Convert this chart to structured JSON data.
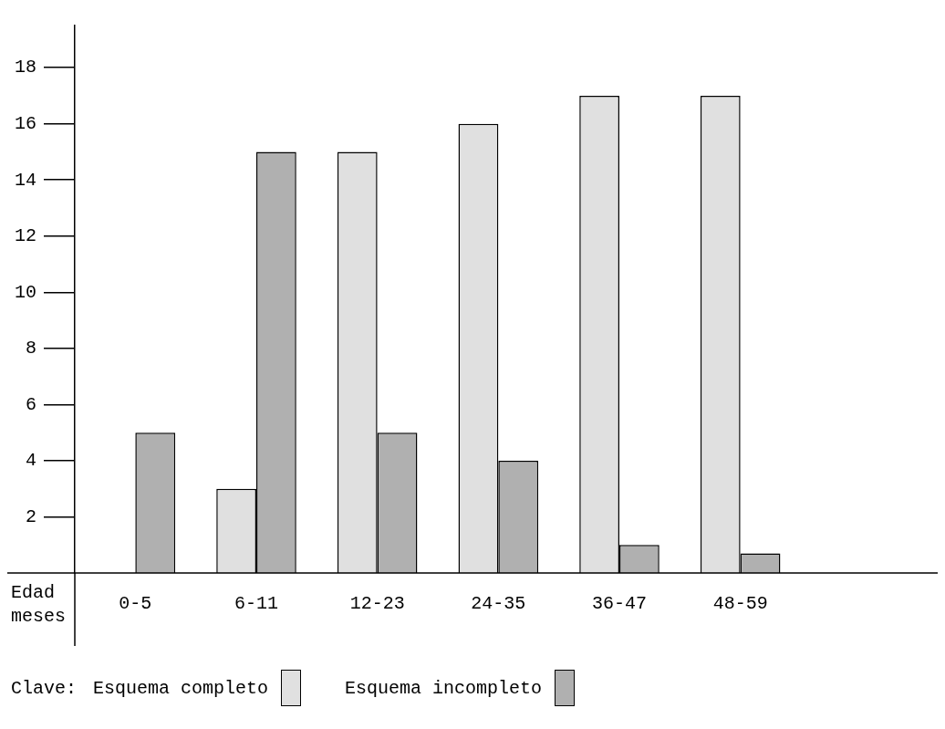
{
  "chart_data": {
    "type": "bar",
    "categories": [
      "0-5",
      "6-11",
      "12-23",
      "24-35",
      "36-47",
      "48-59"
    ],
    "series": [
      {
        "name": "Esquema completo",
        "color": "#e0e0e0",
        "values": [
          null,
          3,
          15,
          16,
          17,
          17
        ]
      },
      {
        "name": "Esquema incompleto",
        "color": "#b0b0b0",
        "values": [
          5,
          15,
          5,
          4,
          1,
          0.7
        ]
      }
    ],
    "xlabel": "Edad meses",
    "legend_title": "Clave:",
    "legend": "bottom",
    "grid": false,
    "ylim": [
      0,
      19.5
    ],
    "yticks": [
      2,
      4,
      6,
      8,
      10,
      12,
      14,
      16,
      18
    ]
  }
}
